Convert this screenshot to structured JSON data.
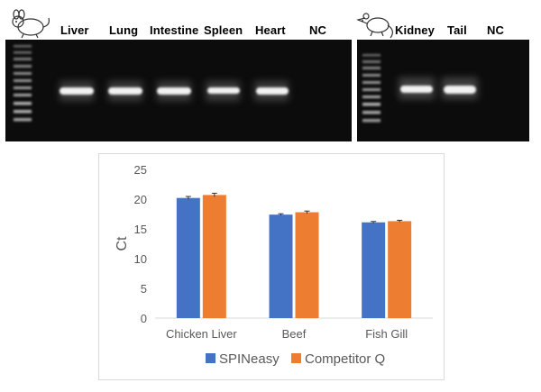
{
  "gel_left": {
    "animal_icon": "mouse-icon",
    "lanes": [
      "Liver",
      "Lung",
      "Intestine",
      "Spleen",
      "Heart",
      "NC"
    ]
  },
  "gel_right": {
    "animal_icon": "rat-icon",
    "lanes": [
      "Kidney",
      "Tail",
      "NC"
    ]
  },
  "chart_data": {
    "type": "bar",
    "title": "",
    "xlabel": "",
    "ylabel": "Ct",
    "ylim": [
      0,
      25
    ],
    "yticks": [
      0,
      5,
      10,
      15,
      20,
      25
    ],
    "grid": false,
    "legend_position": "bottom",
    "categories": [
      "Chicken Liver",
      "Beef",
      "Fish Gill"
    ],
    "series": [
      {
        "name": "SPINeasy",
        "color": "#4472c4",
        "values": [
          20.2,
          17.4,
          16.1
        ],
        "errors": [
          0.25,
          0.15,
          0.15
        ]
      },
      {
        "name": "Competitor Q",
        "color": "#ed7d31",
        "values": [
          20.7,
          17.8,
          16.3
        ],
        "errors": [
          0.3,
          0.2,
          0.15
        ]
      }
    ]
  }
}
